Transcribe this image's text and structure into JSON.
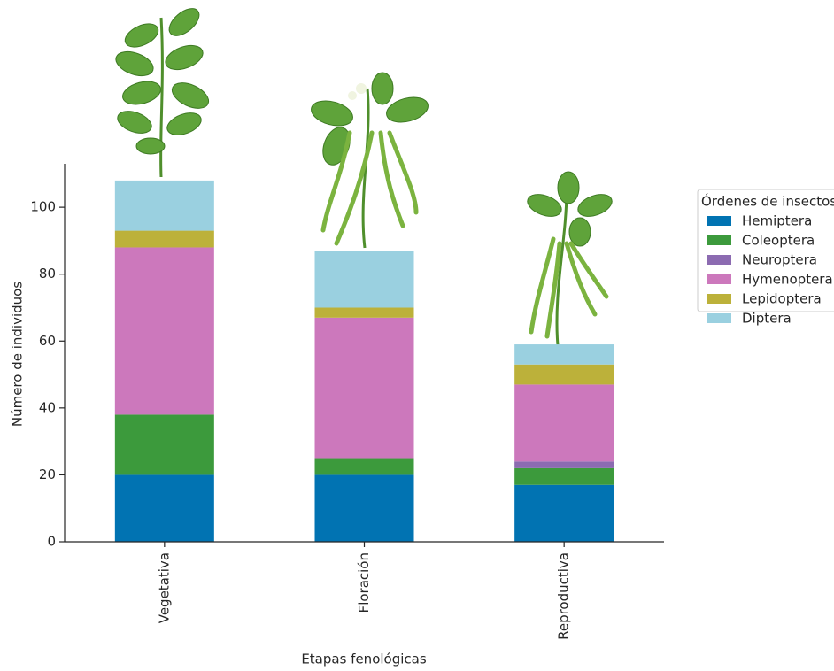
{
  "chart_data": {
    "type": "stacked_bar",
    "x_label": "Etapas fenológicas",
    "y_label": "Número de individuos",
    "categories": [
      "Vegetativa",
      "Floración",
      "Reproductiva"
    ],
    "legend_title": "Órdenes de insectos",
    "legend_position": "right",
    "series": [
      {
        "name": "Hemiptera",
        "color": "#0173b2",
        "values": [
          20,
          20,
          17
        ]
      },
      {
        "name": "Coleoptera",
        "color": "#3c9a3c",
        "values": [
          18,
          5,
          5
        ]
      },
      {
        "name": "Neuroptera",
        "color": "#8c6bb1",
        "values": [
          0,
          0,
          2
        ]
      },
      {
        "name": "Hymenoptera",
        "color": "#cc78bc",
        "values": [
          50,
          42,
          23
        ]
      },
      {
        "name": "Lepidoptera",
        "color": "#bcb13a",
        "values": [
          5,
          3,
          6
        ]
      },
      {
        "name": "Diptera",
        "color": "#9ad0e0",
        "values": [
          15,
          17,
          6
        ]
      }
    ],
    "ylim": [
      0,
      113
    ],
    "yticks": [
      0,
      20,
      40,
      60,
      80,
      100
    ]
  }
}
